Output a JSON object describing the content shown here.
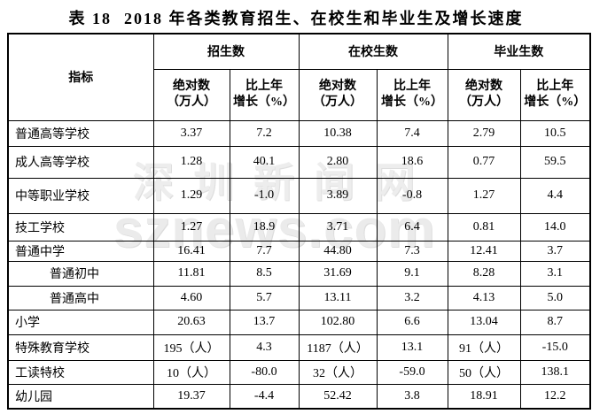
{
  "chart_data": {
    "type": "table",
    "title_prefix": "表 18",
    "title_main": "2018 年各类教育招生、在校生和毕业生及增长速度",
    "indicator_header": "指标",
    "groups": [
      {
        "label": "招生数"
      },
      {
        "label": "在校生数"
      },
      {
        "label": "毕业生数"
      }
    ],
    "sub_headers": [
      {
        "line1": "绝对数",
        "line2": "（万人）"
      },
      {
        "line1": "比上年",
        "line2": "增长（%）"
      },
      {
        "line1": "绝对数",
        "line2": "（万人）"
      },
      {
        "line1": "比上年",
        "line2": "增长（%）"
      },
      {
        "line1": "绝对数",
        "line2": "（万人）"
      },
      {
        "line1": "比上年",
        "line2": "增长（%）"
      }
    ],
    "rows": [
      {
        "label": "普通高等学校",
        "indent": false,
        "values": [
          "3.37",
          "7.2",
          "10.38",
          "7.4",
          "2.79",
          "10.5"
        ]
      },
      {
        "label": "成人高等学校",
        "indent": false,
        "values": [
          "1.28",
          "40.1",
          "2.80",
          "18.6",
          "0.77",
          "59.5"
        ]
      },
      {
        "label": "中等职业学校",
        "indent": false,
        "values": [
          "1.29",
          "-1.0",
          "3.89",
          "-0.8",
          "1.27",
          "4.4"
        ]
      },
      {
        "label": "技工学校",
        "indent": false,
        "values": [
          "1.27",
          "18.9",
          "3.71",
          "6.4",
          "0.81",
          "14.0"
        ]
      },
      {
        "label": "普通中学",
        "indent": false,
        "values": [
          "16.41",
          "7.7",
          "44.80",
          "7.3",
          "12.41",
          "3.7"
        ]
      },
      {
        "label": "普通初中",
        "indent": true,
        "values": [
          "11.81",
          "8.5",
          "31.69",
          "9.1",
          "8.28",
          "3.1"
        ]
      },
      {
        "label": "普通高中",
        "indent": true,
        "values": [
          "4.60",
          "5.7",
          "13.11",
          "3.2",
          "4.13",
          "5.0"
        ]
      },
      {
        "label": "小学",
        "indent": false,
        "values": [
          "20.63",
          "13.7",
          "102.80",
          "6.6",
          "13.04",
          "8.7"
        ]
      },
      {
        "label": "特殊教育学校",
        "indent": false,
        "values": [
          "195（人）",
          "4.3",
          "1187（人）",
          "13.1",
          "91（人）",
          "-15.0"
        ]
      },
      {
        "label": "工读特校",
        "indent": false,
        "values": [
          "10（人）",
          "-80.0",
          "32（人）",
          "-59.0",
          "50（人）",
          "138.1"
        ]
      },
      {
        "label": "幼儿园",
        "indent": false,
        "values": [
          "19.37",
          "-4.4",
          "52.42",
          "3.8",
          "18.91",
          "12.2"
        ]
      }
    ]
  },
  "watermark": {
    "line1": "深圳新闻网",
    "line2": "sznews.com"
  }
}
